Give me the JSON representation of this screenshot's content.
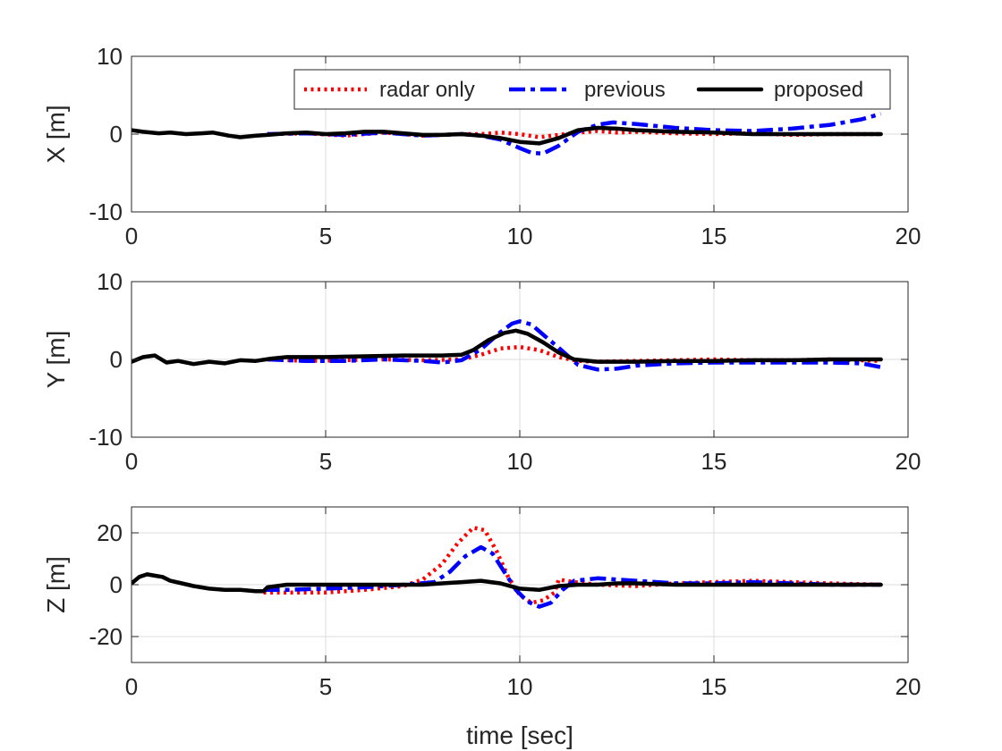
{
  "chart_data": [
    {
      "type": "line",
      "ylabel": "X [m]",
      "xlabel": "",
      "xlim": [
        0,
        20
      ],
      "ylim": [
        -10,
        10
      ],
      "xticks": [
        0,
        5,
        10,
        15,
        20
      ],
      "yticks": [
        -10,
        0,
        10
      ],
      "xtick_labels": [
        "0",
        "5",
        "10",
        "15",
        "20"
      ],
      "ytick_labels": [
        "-10",
        "0",
        "10"
      ],
      "grid": true,
      "legend": "top-right",
      "series": [
        {
          "name": "radar only",
          "color": "#ff0000",
          "style": "dotted",
          "x": [
            3.5,
            4.5,
            5.5,
            6.5,
            7.5,
            8.5,
            9.0,
            9.5,
            10.0,
            10.5,
            11.0,
            11.5,
            12.0,
            12.5,
            13.0,
            14.0,
            15.0,
            16.0,
            17.0,
            18.0,
            19.3
          ],
          "y": [
            0.0,
            0.1,
            -0.2,
            0.2,
            -0.2,
            0.0,
            0.0,
            0.2,
            0.0,
            -0.4,
            -0.1,
            0.2,
            0.4,
            0.2,
            0.3,
            0.1,
            0.0,
            0.1,
            -0.1,
            0.0,
            0.0
          ]
        },
        {
          "name": "previous",
          "color": "#0000ff",
          "style": "dashdot",
          "x": [
            3.5,
            4.5,
            5.5,
            6.5,
            7.5,
            8.5,
            9.0,
            9.5,
            10.0,
            10.3,
            10.6,
            11.0,
            11.5,
            12.0,
            12.4,
            13.0,
            14.0,
            15.0,
            16.0,
            17.0,
            18.0,
            18.8,
            19.3
          ],
          "y": [
            0.0,
            0.1,
            -0.1,
            0.2,
            -0.2,
            0.0,
            -0.2,
            -0.7,
            -1.8,
            -2.4,
            -2.5,
            -1.5,
            0.3,
            1.2,
            1.5,
            1.3,
            0.8,
            0.5,
            0.4,
            0.7,
            1.2,
            1.9,
            2.6
          ]
        },
        {
          "name": "proposed",
          "color": "#000000",
          "style": "solid",
          "x": [
            0.0,
            0.3,
            0.7,
            1.0,
            1.4,
            1.8,
            2.1,
            2.5,
            2.8,
            3.2,
            3.5,
            4.0,
            4.5,
            5.0,
            5.5,
            6.0,
            6.5,
            7.0,
            7.5,
            8.0,
            8.5,
            9.0,
            9.5,
            10.0,
            10.5,
            11.0,
            11.5,
            12.0,
            12.5,
            13.0,
            14.0,
            15.0,
            16.0,
            17.0,
            18.0,
            19.3
          ],
          "y": [
            0.5,
            0.3,
            0.1,
            0.2,
            0.0,
            0.1,
            0.2,
            -0.2,
            -0.4,
            -0.2,
            -0.1,
            0.1,
            0.2,
            0.0,
            0.1,
            0.3,
            0.3,
            0.1,
            -0.1,
            -0.1,
            0.0,
            -0.2,
            -0.5,
            -1.0,
            -1.2,
            -0.5,
            0.5,
            0.8,
            0.7,
            0.5,
            0.3,
            0.2,
            0.0,
            0.0,
            0.0,
            0.0
          ]
        }
      ]
    },
    {
      "type": "line",
      "ylabel": "Y [m]",
      "xlabel": "",
      "xlim": [
        0,
        20
      ],
      "ylim": [
        -10,
        10
      ],
      "xticks": [
        0,
        5,
        10,
        15,
        20
      ],
      "yticks": [
        -10,
        0,
        10
      ],
      "xtick_labels": [
        "0",
        "5",
        "10",
        "15",
        "20"
      ],
      "ytick_labels": [
        "-10",
        "0",
        "10"
      ],
      "grid": true,
      "series": [
        {
          "name": "radar only",
          "color": "#ff0000",
          "style": "dotted",
          "x": [
            3.5,
            4.5,
            5.5,
            6.5,
            7.5,
            8.5,
            9.0,
            9.5,
            10.0,
            10.5,
            11.0,
            11.5,
            12.0,
            13.0,
            14.0,
            15.0,
            16.0,
            17.0,
            18.0,
            19.3
          ],
          "y": [
            0.0,
            -0.2,
            -0.1,
            0.0,
            -0.1,
            0.0,
            0.6,
            1.4,
            1.6,
            1.2,
            0.3,
            -0.2,
            -0.3,
            -0.2,
            -0.1,
            0.0,
            -0.1,
            -0.1,
            0.0,
            -0.2
          ]
        },
        {
          "name": "previous",
          "color": "#0000ff",
          "style": "dashdot",
          "x": [
            3.5,
            4.5,
            5.5,
            6.5,
            7.5,
            8.0,
            8.5,
            9.0,
            9.5,
            9.8,
            10.0,
            10.3,
            10.6,
            11.0,
            11.5,
            12.0,
            12.5,
            13.0,
            14.0,
            15.0,
            16.0,
            17.0,
            18.0,
            18.8,
            19.3
          ],
          "y": [
            0.0,
            -0.2,
            -0.2,
            0.0,
            -0.2,
            -0.4,
            -0.1,
            1.3,
            3.5,
            4.6,
            4.9,
            4.5,
            3.2,
            1.5,
            -0.7,
            -1.3,
            -1.2,
            -0.8,
            -0.5,
            -0.4,
            -0.4,
            -0.4,
            -0.4,
            -0.5,
            -1.0
          ]
        },
        {
          "name": "proposed",
          "color": "#000000",
          "style": "solid",
          "x": [
            0.0,
            0.3,
            0.6,
            0.9,
            1.2,
            1.6,
            2.0,
            2.4,
            2.8,
            3.2,
            3.6,
            4.0,
            5.0,
            6.0,
            7.0,
            8.0,
            8.5,
            8.8,
            9.2,
            9.6,
            9.9,
            10.2,
            10.6,
            11.0,
            11.4,
            12.0,
            13.0,
            14.0,
            15.0,
            16.0,
            17.0,
            18.0,
            19.3
          ],
          "y": [
            -0.3,
            0.3,
            0.5,
            -0.4,
            -0.2,
            -0.6,
            -0.3,
            -0.5,
            -0.1,
            -0.2,
            0.1,
            0.3,
            0.3,
            0.4,
            0.5,
            0.5,
            0.6,
            1.2,
            2.5,
            3.4,
            3.7,
            3.3,
            2.2,
            0.9,
            0.0,
            -0.3,
            -0.3,
            -0.2,
            -0.2,
            -0.1,
            -0.1,
            0.0,
            0.0
          ]
        }
      ]
    },
    {
      "type": "line",
      "ylabel": "Z [m]",
      "xlabel": "time [sec]",
      "xlim": [
        0,
        20
      ],
      "ylim": [
        -30,
        30
      ],
      "xticks": [
        0,
        5,
        10,
        15,
        20
      ],
      "yticks": [
        -20,
        0,
        20
      ],
      "xtick_labels": [
        "0",
        "5",
        "10",
        "15",
        "20"
      ],
      "ytick_labels": [
        "-20",
        "0",
        "20"
      ],
      "grid": true,
      "series": [
        {
          "name": "radar only",
          "color": "#ff0000",
          "style": "dotted",
          "x": [
            3.4,
            4.0,
            5.0,
            6.0,
            7.0,
            7.5,
            8.0,
            8.4,
            8.8,
            9.1,
            9.4,
            9.7,
            10.0,
            10.3,
            10.6,
            10.9,
            11.0,
            11.4,
            12.0,
            13.0,
            14.0,
            15.0,
            16.0,
            17.0,
            18.0,
            19.3
          ],
          "y": [
            -3.0,
            -3.0,
            -3.0,
            -2.0,
            -0.5,
            2.0,
            8.0,
            16.0,
            22.0,
            21.0,
            13.0,
            3.0,
            -4.0,
            -7.0,
            -6.0,
            -3.0,
            2.0,
            1.0,
            0.0,
            -0.5,
            0.5,
            1.0,
            1.5,
            1.0,
            0.5,
            0.0
          ]
        },
        {
          "name": "previous",
          "color": "#0000ff",
          "style": "dashdot",
          "x": [
            3.4,
            4.0,
            5.0,
            6.0,
            7.0,
            7.8,
            8.2,
            8.6,
            9.0,
            9.3,
            9.6,
            9.9,
            10.2,
            10.5,
            10.8,
            11.1,
            11.4,
            12.0,
            13.0,
            14.0,
            15.0,
            16.0,
            17.0,
            18.0,
            19.3
          ],
          "y": [
            -2.0,
            -2.0,
            -1.5,
            -1.0,
            0.0,
            1.0,
            5.0,
            11.0,
            14.5,
            12.0,
            5.0,
            -2.0,
            -6.5,
            -8.5,
            -7.0,
            -2.0,
            1.5,
            2.5,
            1.5,
            0.5,
            0.5,
            1.0,
            0.5,
            0.0,
            0.0
          ]
        },
        {
          "name": "proposed",
          "color": "#000000",
          "style": "solid",
          "x": [
            0.0,
            0.2,
            0.4,
            0.6,
            0.8,
            1.0,
            1.3,
            1.6,
            2.0,
            2.4,
            2.8,
            3.2,
            3.4,
            3.5,
            4.0,
            5.0,
            6.0,
            7.0,
            7.5,
            8.0,
            8.5,
            9.0,
            9.5,
            10.0,
            10.5,
            11.0,
            11.5,
            12.0,
            12.5,
            13.0,
            14.0,
            15.0,
            16.0,
            17.0,
            18.0,
            19.3
          ],
          "y": [
            0.5,
            3.0,
            4.0,
            3.5,
            3.0,
            1.5,
            0.5,
            -0.5,
            -1.5,
            -2.0,
            -2.0,
            -2.5,
            -2.5,
            -1.0,
            0.0,
            0.0,
            0.0,
            0.0,
            0.0,
            0.5,
            1.0,
            1.5,
            0.5,
            -1.5,
            -2.0,
            -0.5,
            0.0,
            0.0,
            0.5,
            0.5,
            0.0,
            0.0,
            0.0,
            0.0,
            0.0,
            0.0
          ]
        }
      ]
    }
  ]
}
